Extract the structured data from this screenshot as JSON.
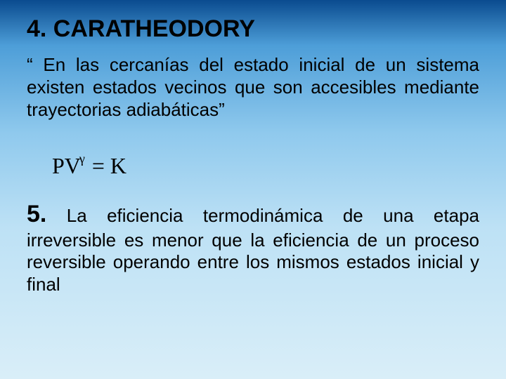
{
  "colors": {
    "text": "#000000",
    "gradient_stops": [
      "#0a4b8f",
      "#4d9ed8",
      "#8fc9ed",
      "#bde1f5",
      "#d9eef8"
    ]
  },
  "typography": {
    "body_family": "Arial",
    "heading_weight": "bold",
    "heading_fontsize_pt": 26,
    "body_fontsize_pt": 20,
    "formula_family": "Times New Roman",
    "formula_fontsize_pt": 24
  },
  "section4": {
    "heading": "4. CARATHEODORY",
    "paragraph": "“ En las cercanías del estado inicial de un sistema existen estados vecinos que son accesibles mediante trayectorias adiabáticas”"
  },
  "formula": {
    "base1": "PV",
    "exponent": "γ",
    "eq": " = ",
    "rhs": "K"
  },
  "section5": {
    "lead": "5.",
    "first_sentence": " La eficiencia termodinámica de una etapa ",
    "rest": "irreversible es menor que la eficiencia de un proceso reversible  operando entre los mismos estados inicial y final"
  }
}
